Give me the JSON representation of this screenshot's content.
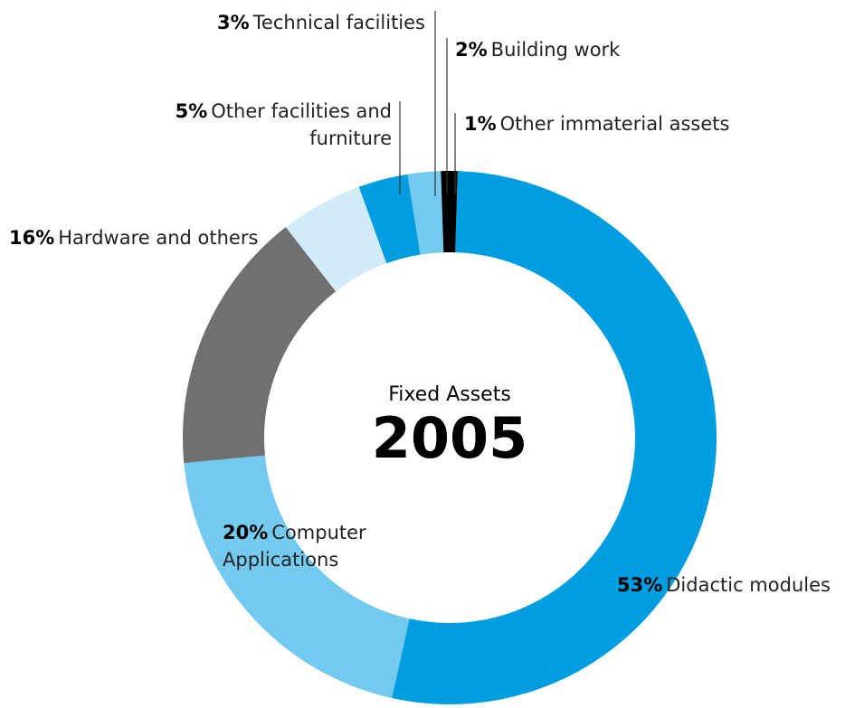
{
  "chart_data": {
    "type": "donut",
    "title": "2005",
    "subtitle": "Fixed Assets",
    "categories": [
      "Didactic modules",
      "Computer Applications",
      "Hardware and others",
      "Other facilities and furniture",
      "Technical facilities",
      "Building work",
      "Other immaterial assets"
    ],
    "values": [
      53,
      20,
      16,
      5,
      3,
      2,
      1
    ],
    "value_labels": [
      "53%",
      "20%",
      "16%",
      "5%",
      "3%",
      "2%",
      "1%"
    ],
    "colors": [
      "#009ee0",
      "#74c9ee",
      "#6f7072",
      "#d3ebf9",
      "#009ee0",
      "#74c9ee",
      "#000000"
    ]
  }
}
